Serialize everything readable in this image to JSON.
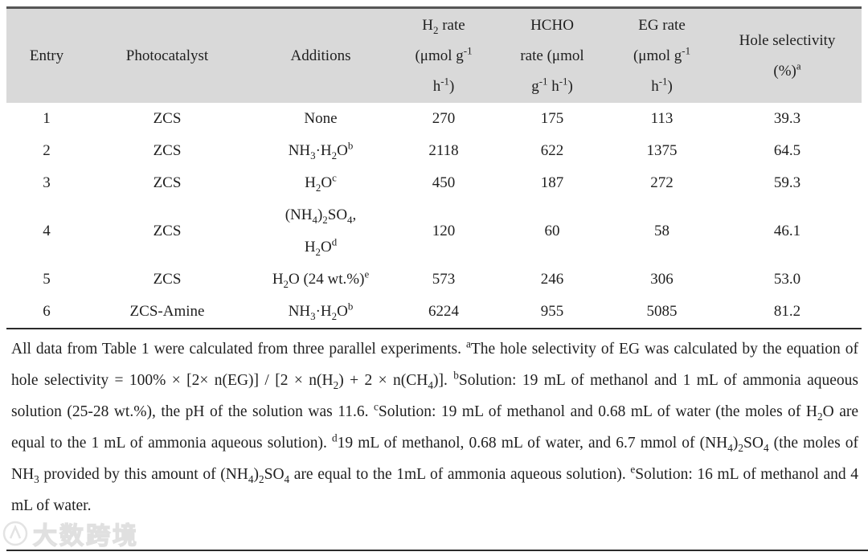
{
  "page": {
    "background": "#ffffff",
    "header_bg": "#d9d9d9",
    "rule_color": "#2b2b2b",
    "text_color": "#1f1f1f"
  },
  "table": {
    "columns": [
      {
        "id": "entry",
        "label_html": "Entry"
      },
      {
        "id": "photocatalyst",
        "label_html": "Photocatalyst"
      },
      {
        "id": "additions",
        "label_html": "Additions"
      },
      {
        "id": "h2-rate",
        "label_html": "H<sub>2</sub> rate<br>(μmol g<sup>-1</sup><br>h<sup>-1</sup>)"
      },
      {
        "id": "hcho-rate",
        "label_html": "HCHO<br>rate (μmol<br>g<sup>-1</sup> h<sup>-1</sup>)"
      },
      {
        "id": "eg-rate",
        "label_html": "EG rate<br>(μmol g<sup>-1</sup><br>h<sup>-1</sup>)"
      },
      {
        "id": "hole-selectivity",
        "label_html": "Hole selectivity<br>(%)<sup>a</sup>"
      }
    ],
    "rows": [
      {
        "entry": "1",
        "photocatalyst": "ZCS",
        "additions_html": "None",
        "h2_rate": "270",
        "hcho_rate": "175",
        "eg_rate": "113",
        "hole_selectivity": "39.3"
      },
      {
        "entry": "2",
        "photocatalyst": "ZCS",
        "additions_html": "NH<sub>3</sub>·H<sub>2</sub>O<sup>b</sup>",
        "h2_rate": "2118",
        "hcho_rate": "622",
        "eg_rate": "1375",
        "hole_selectivity": "64.5"
      },
      {
        "entry": "3",
        "photocatalyst": "ZCS",
        "additions_html": "H<sub>2</sub>O<sup>c</sup>",
        "h2_rate": "450",
        "hcho_rate": "187",
        "eg_rate": "272",
        "hole_selectivity": "59.3"
      },
      {
        "entry": "4",
        "photocatalyst": "ZCS",
        "additions_html": "(NH<sub>4</sub>)<sub>2</sub>SO<sub>4</sub>,<br>H<sub>2</sub>O<sup>d</sup>",
        "h2_rate": "120",
        "hcho_rate": "60",
        "eg_rate": "58",
        "hole_selectivity": "46.1"
      },
      {
        "entry": "5",
        "photocatalyst": "ZCS",
        "additions_html": "H<sub>2</sub>O (24 wt.%)<sup>e</sup>",
        "h2_rate": "573",
        "hcho_rate": "246",
        "eg_rate": "306",
        "hole_selectivity": "53.0"
      },
      {
        "entry": "6",
        "photocatalyst": "ZCS-Amine",
        "additions_html": "NH<sub>3</sub>·H<sub>2</sub>O<sup>b</sup>",
        "h2_rate": "6224",
        "hcho_rate": "955",
        "eg_rate": "5085",
        "hole_selectivity": "81.2"
      }
    ]
  },
  "footnote": {
    "text_html": "All data from Table 1 were calculated from three parallel experiments. <sup>a</sup>The hole selectivity of EG was calculated by the equation of hole selectivity = 100% × [2× n(EG)] / [2 × n(H<sub>2</sub>) + 2 × n(CH<sub>4</sub>)]. <sup>b</sup>Solution: 19 mL of methanol and 1 mL of ammonia aqueous solution (25-28 wt.%), the pH of the solution was 11.6. <sup>c</sup>Solution: 19 mL of methanol and 0.68 mL of water (the moles of H<sub>2</sub>O are equal to the 1 mL of ammonia aqueous solution). <sup>d</sup>19 mL of methanol, 0.68 mL of water, and 6.7 mmol of (NH<sub>4</sub>)<sub>2</sub>SO<sub>4</sub> (the moles of NH<sub>3</sub> provided by this amount of (NH<sub>4</sub>)<sub>2</sub>SO<sub>4</sub> are equal to the 1mL of ammonia aqueous solution). <sup>e</sup>Solution: 16 mL of methanol and 4 mL of water."
  },
  "watermark": {
    "text": "大数跨境"
  }
}
